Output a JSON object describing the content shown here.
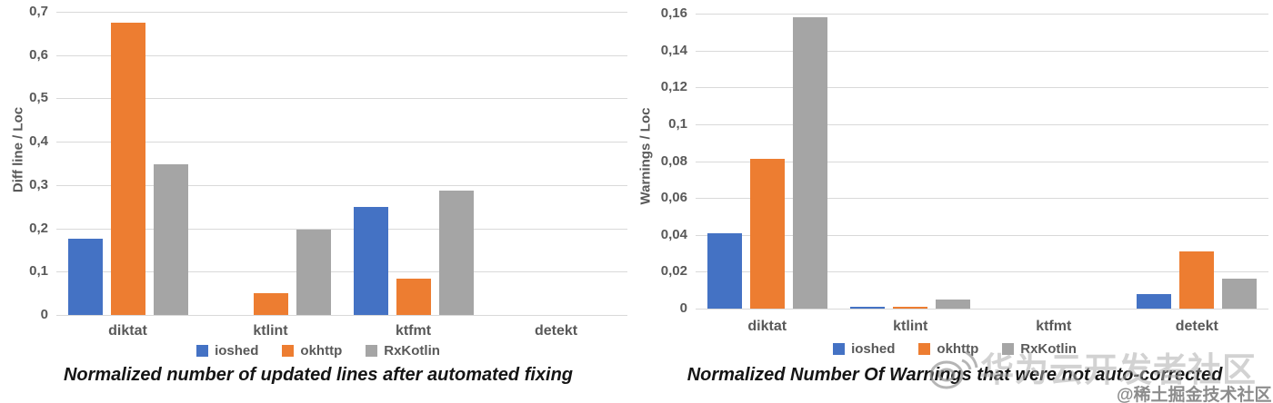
{
  "colors": {
    "ioshed": "#4472C4",
    "okhttp": "#ED7D31",
    "rxkotlin": "#A5A5A5",
    "axis_text": "#595959",
    "gridline": "#D9D9D9",
    "caption": "#151515",
    "background": "#FFFFFF"
  },
  "chart_data": [
    {
      "type": "bar",
      "title": "Normalized number of updated lines after automated fixing",
      "ylabel": "Diff line / Loc",
      "xlabel": "",
      "categories": [
        "diktat",
        "ktlint",
        "ktfmt",
        "detekt"
      ],
      "series": [
        {
          "name": "ioshed",
          "color": "#4472C4",
          "values": [
            0.175,
            0,
            0.25,
            0
          ]
        },
        {
          "name": "okhttp",
          "color": "#ED7D31",
          "values": [
            0.675,
            0.05,
            0.084,
            0
          ]
        },
        {
          "name": "RxKotlin",
          "color": "#A5A5A5",
          "values": [
            0.348,
            0.198,
            0.287,
            0
          ]
        }
      ],
      "ylim": [
        0,
        0.7
      ],
      "ytick_step": 0.1,
      "ytick_labels": [
        "0",
        "0,1",
        "0,2",
        "0,3",
        "0,4",
        "0,5",
        "0,6",
        "0,7"
      ],
      "grid": true,
      "legend_position": "bottom"
    },
    {
      "type": "bar",
      "title": "Normalized Number Of Warnings that were not auto-corrected",
      "ylabel": "Warnings / Loc",
      "xlabel": "",
      "categories": [
        "diktat",
        "ktlint",
        "ktfmt",
        "detekt"
      ],
      "series": [
        {
          "name": "ioshed",
          "color": "#4472C4",
          "values": [
            0.041,
            0.001,
            0,
            0.008
          ]
        },
        {
          "name": "okhttp",
          "color": "#ED7D31",
          "values": [
            0.081,
            0.001,
            0,
            0.031
          ]
        },
        {
          "name": "RxKotlin",
          "color": "#A5A5A5",
          "values": [
            0.158,
            0.005,
            0,
            0.016
          ]
        }
      ],
      "ylim": [
        0,
        0.16
      ],
      "ytick_step": 0.02,
      "ytick_labels": [
        "0",
        "0,02",
        "0,04",
        "0,06",
        "0,08",
        "0,1",
        "0,12",
        "0,14",
        "0,16"
      ],
      "grid": true,
      "legend_position": "bottom"
    }
  ],
  "watermarks": {
    "primary": "华为云开发者社区",
    "secondary": "@稀土掘金技术社区"
  }
}
